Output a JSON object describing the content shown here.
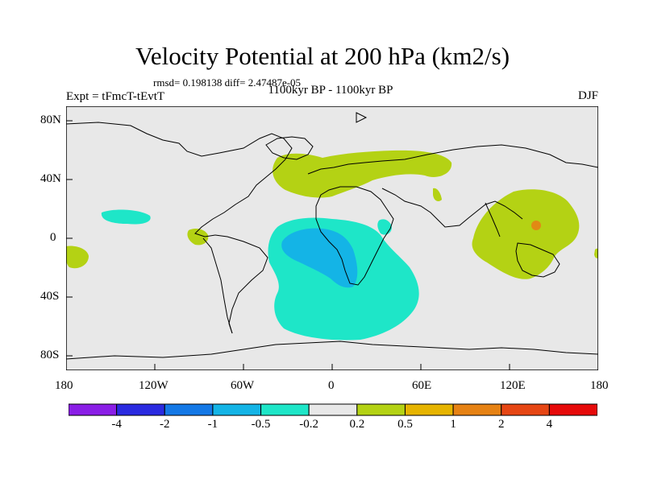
{
  "title": "Velocity Potential at 200 hPa (km2/s)",
  "stats": "rmsd= 0.198138 diff= 2.47487e-05",
  "left_label": "Expt = tFmcT-tEvtT",
  "center_label": "1100kyr BP - 1100kyr BP",
  "right_label": "DJF",
  "axes": {
    "x_ticks": [
      "180",
      "120W",
      "60W",
      "0",
      "60E",
      "120E",
      "180"
    ],
    "y_ticks": [
      "80N",
      "40N",
      "0",
      "40S",
      "80S"
    ]
  },
  "colorbar": {
    "colors": [
      "#8a1ee6",
      "#2a2ae0",
      "#1478e6",
      "#14b4e6",
      "#1ee6c8",
      "#e8e8e8",
      "#b4d214",
      "#e6b400",
      "#e68214",
      "#e64614",
      "#e60a0a"
    ],
    "labels": [
      "-4",
      "-2",
      "-1",
      "-0.5",
      "-0.2",
      "0.2",
      "0.5",
      "1",
      "2",
      "4"
    ]
  },
  "chart_data": {
    "type": "heatmap",
    "title": "Velocity Potential at 200 hPa (km2/s)",
    "xlim": [
      -180,
      180
    ],
    "ylim": [
      -90,
      90
    ],
    "levels": [
      -4,
      -2,
      -1,
      -0.5,
      -0.2,
      0.2,
      0.5,
      1,
      2,
      4
    ],
    "features": [
      {
        "name": "Europe/North Africa positive anomaly",
        "range": "0.2 to 0.5",
        "lon": [
          -38,
          80
        ],
        "lat": [
          25,
          60
        ]
      },
      {
        "name": "Western Pacific / Maritime Continent positive anomaly",
        "range": "0.2 to 0.5",
        "lon": [
          95,
          180
        ],
        "lat": [
          -28,
          32
        ]
      },
      {
        "name": "Small positive peak near New Guinea",
        "range": "1 to 2",
        "lon": [
          138
        ],
        "lat": [
          8
        ]
      },
      {
        "name": "South Atlantic / Southern Africa negative anomaly",
        "range": "-0.5 to -0.2",
        "lon": [
          -45,
          62
        ],
        "lat": [
          -70,
          15
        ]
      },
      {
        "name": "Core of South Atlantic negative anomaly",
        "range": "-1 to -0.5",
        "lon": [
          -35,
          20
        ],
        "lat": [
          -35,
          5
        ]
      },
      {
        "name": "Northeast Pacific negative patch",
        "range": "-0.5 to -0.2",
        "lon": [
          -155,
          -125
        ],
        "lat": [
          10,
          20
        ]
      }
    ]
  }
}
